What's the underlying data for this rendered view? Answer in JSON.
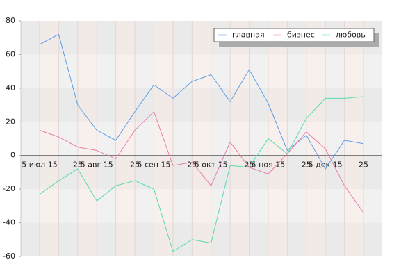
{
  "chart_data": {
    "type": "line",
    "categories": [
      "5 июл 15",
      null,
      "25",
      "5 авг 15",
      null,
      "25",
      "5 сен 15",
      null,
      "25",
      "5 окт 15",
      null,
      "25",
      "5 ноя 15",
      null,
      "25",
      "5 дек 15",
      null,
      "25"
    ],
    "series": [
      {
        "name": "главная",
        "color": "#5b9be8",
        "values": [
          66,
          72,
          30,
          15,
          9,
          26,
          42,
          34,
          44,
          48,
          32,
          51,
          31,
          3,
          12,
          -8,
          9,
          7
        ]
      },
      {
        "name": "бизнес",
        "color": "#e87aa8",
        "values": [
          15,
          11,
          5,
          3,
          -2,
          15,
          26,
          -6,
          -4,
          -18,
          8,
          -7,
          -11,
          1,
          14,
          4,
          -18,
          -34
        ]
      },
      {
        "name": "любовь",
        "color": "#55dca8",
        "values": [
          -23,
          -15,
          -8,
          -27,
          -18,
          -15,
          -20,
          -57,
          -50,
          -52,
          -6,
          -7,
          10,
          1,
          22,
          34,
          34,
          35
        ]
      }
    ],
    "ylim": [
      -60,
      80
    ],
    "yticks": [
      -60,
      -40,
      -20,
      0,
      20,
      40,
      60,
      80
    ],
    "legend": "top-right"
  }
}
